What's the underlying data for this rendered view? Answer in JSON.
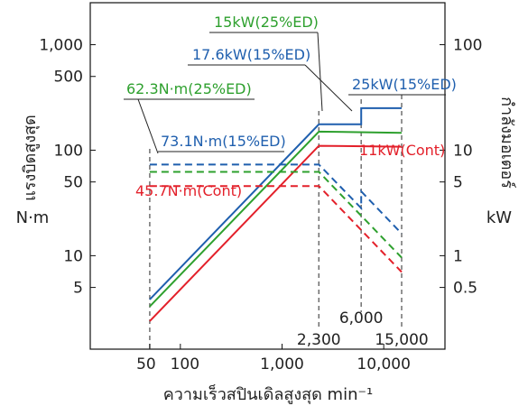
{
  "chart_data": {
    "type": "line",
    "x_scale": "log",
    "y_scale": "log",
    "y2_scale": "log",
    "xlim": [
      13,
      40000
    ],
    "ylim": [
      1.3,
      2500
    ],
    "y2lim": [
      0.13,
      250
    ],
    "x_ticks": [
      {
        "value": 50,
        "label": "50"
      },
      {
        "value": 100,
        "label": "100"
      },
      {
        "value": 1000,
        "label": "1,000"
      },
      {
        "value": 10000,
        "label": "10,000"
      }
    ],
    "y_ticks": [
      {
        "value": 5,
        "label": "5"
      },
      {
        "value": 10,
        "label": "10"
      },
      {
        "value": 50,
        "label": "50"
      },
      {
        "value": 100,
        "label": "100"
      },
      {
        "value": 500,
        "label": "500"
      },
      {
        "value": 1000,
        "label": "1,000"
      }
    ],
    "y2_ticks": [
      {
        "value": 0.5,
        "label": "0.5"
      },
      {
        "value": 1,
        "label": "1"
      },
      {
        "value": 5,
        "label": "5"
      },
      {
        "value": 10,
        "label": "10"
      },
      {
        "value": 100,
        "label": "100"
      }
    ],
    "xlabel": "ความเร็วสปินเดิลสูงสุด min⁻¹",
    "ylabel_text": "แรงบิดสูงสุด",
    "ylabel_unit": "N·m",
    "y2label_text": "กำลังมอเตอร์",
    "y2label_unit": "kW",
    "colors": {
      "blue": "#1f5fae",
      "green": "#2ea02e",
      "red": "#e3202a",
      "grid": "#666666"
    },
    "vlines": [
      {
        "x": 50,
        "label": ""
      },
      {
        "x": 2300,
        "label": "2,300"
      },
      {
        "x": 6000,
        "label": "6,000"
      },
      {
        "x": 15000,
        "label": "15,000"
      }
    ],
    "power_series": [
      {
        "color": "blue",
        "points": [
          [
            50,
            0.385
          ],
          [
            2300,
            17.6
          ],
          [
            6000,
            17.6
          ],
          [
            6000,
            25
          ],
          [
            15000,
            25
          ]
        ]
      },
      {
        "color": "green",
        "points": [
          [
            50,
            0.33
          ],
          [
            2300,
            15
          ],
          [
            15000,
            14.6
          ]
        ]
      },
      {
        "color": "red",
        "points": [
          [
            50,
            0.24
          ],
          [
            2300,
            11
          ],
          [
            15000,
            10.8
          ]
        ]
      }
    ],
    "torque_series": [
      {
        "color": "blue",
        "points": [
          [
            50,
            73.1
          ],
          [
            2300,
            73.1
          ],
          [
            6000,
            28.2
          ],
          [
            6000,
            40.7
          ],
          [
            15000,
            16.2
          ]
        ]
      },
      {
        "color": "green",
        "points": [
          [
            50,
            62.3
          ],
          [
            2300,
            62.3
          ],
          [
            15000,
            9.6
          ]
        ]
      },
      {
        "color": "red",
        "points": [
          [
            50,
            45.7
          ],
          [
            2300,
            45.7
          ],
          [
            15000,
            7.0
          ]
        ]
      }
    ],
    "annotations": [
      {
        "text": "15kW(25%ED)",
        "color": "green"
      },
      {
        "text": "17.6kW(15%ED)",
        "color": "blue"
      },
      {
        "text": "25kW(15%ED)",
        "color": "blue"
      },
      {
        "text": "62.3N·m(25%ED)",
        "color": "green"
      },
      {
        "text": "73.1N·m(15%ED)",
        "color": "blue"
      },
      {
        "text": "11kW(Cont)",
        "color": "red"
      },
      {
        "text": "45.7N·m(Cont)",
        "color": "red"
      }
    ]
  }
}
